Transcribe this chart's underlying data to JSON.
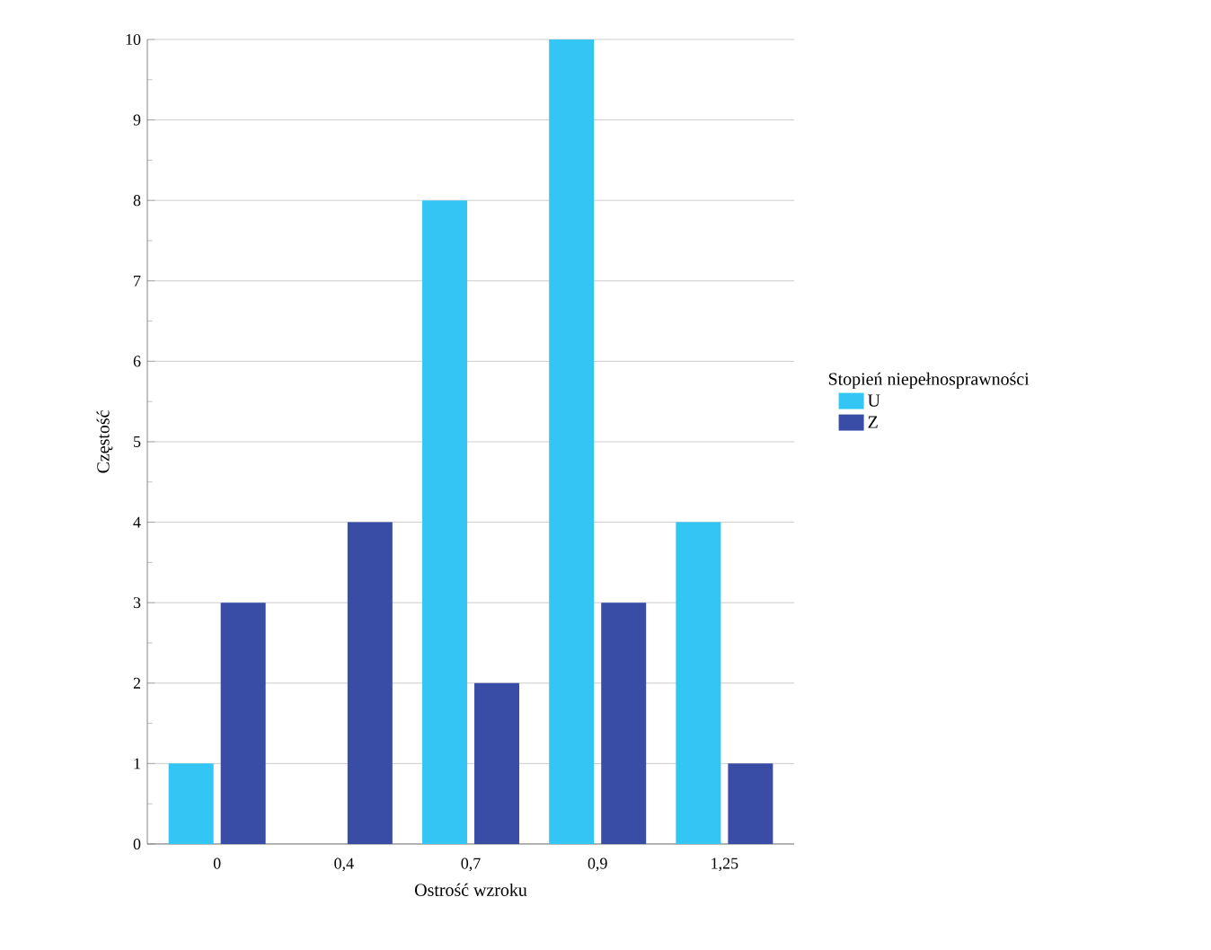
{
  "chart_data": {
    "type": "bar",
    "xlabel": "Ostrość wzroku",
    "ylabel": "Częstość",
    "legend_title": "Stopień niepełnosprawności",
    "categories": [
      "0",
      "0,4",
      "0,7",
      "0,9",
      "1,25"
    ],
    "series": [
      {
        "name": "U",
        "color": "#33c5f3",
        "values": [
          1,
          0,
          8,
          10,
          4
        ]
      },
      {
        "name": "Z",
        "color": "#3a4da6",
        "values": [
          3,
          4,
          2,
          3,
          1
        ]
      }
    ],
    "ylim": [
      0,
      10
    ],
    "yticks": [
      0,
      1,
      2,
      3,
      4,
      5,
      6,
      7,
      8,
      9,
      10
    ],
    "grid": "y",
    "legend": "right"
  }
}
